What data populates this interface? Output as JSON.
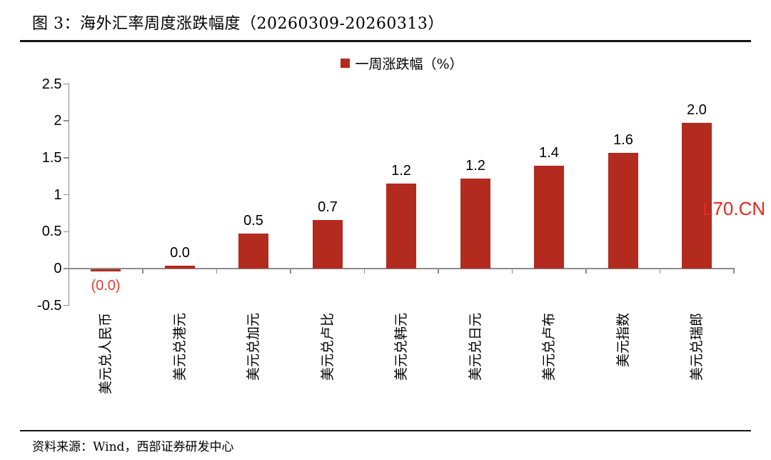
{
  "page": {
    "title": "图 3：海外汇率周度涨跌幅度（20260309-20260313）",
    "source_note": "资料来源：Wind，西部证券研发中心",
    "watermark": "L70.CN"
  },
  "colors": {
    "bar": "#b32a1e",
    "axis": "#8c8c8c",
    "text": "#000000",
    "negative_label": "#e73a2e",
    "watermark": "#e6281c"
  },
  "chart_data": {
    "type": "bar",
    "title": "图 3：海外汇率周度涨跌幅度（20260309-20260313）",
    "legend": "一周涨跌幅（%）",
    "legend_position": "top-center",
    "grid": false,
    "xlabel": "",
    "ylabel": "",
    "ylim": [
      -0.5,
      2.5
    ],
    "y_ticks": [
      {
        "label": "2.5",
        "value": 2.5
      },
      {
        "label": "2",
        "value": 2
      },
      {
        "label": "1.5",
        "value": 1.5
      },
      {
        "label": "1",
        "value": 1
      },
      {
        "label": "0.5",
        "value": 0.5
      },
      {
        "label": "0",
        "value": 0
      },
      {
        "label": "-0.5",
        "value": -0.5
      }
    ],
    "categories": [
      "美元兑人民币",
      "美元兑港元",
      "美元兑加元",
      "美元兑卢比",
      "美元兑韩元",
      "美元兑日元",
      "美元兑卢布",
      "美元指数",
      "美元兑瑞郎"
    ],
    "values": [
      -0.03,
      0.04,
      0.47,
      0.66,
      1.15,
      1.22,
      1.39,
      1.57,
      1.97
    ],
    "value_labels": [
      "(0.0)",
      "0.0",
      "0.5",
      "0.7",
      "1.2",
      "1.2",
      "1.4",
      "1.6",
      "2.0"
    ]
  }
}
